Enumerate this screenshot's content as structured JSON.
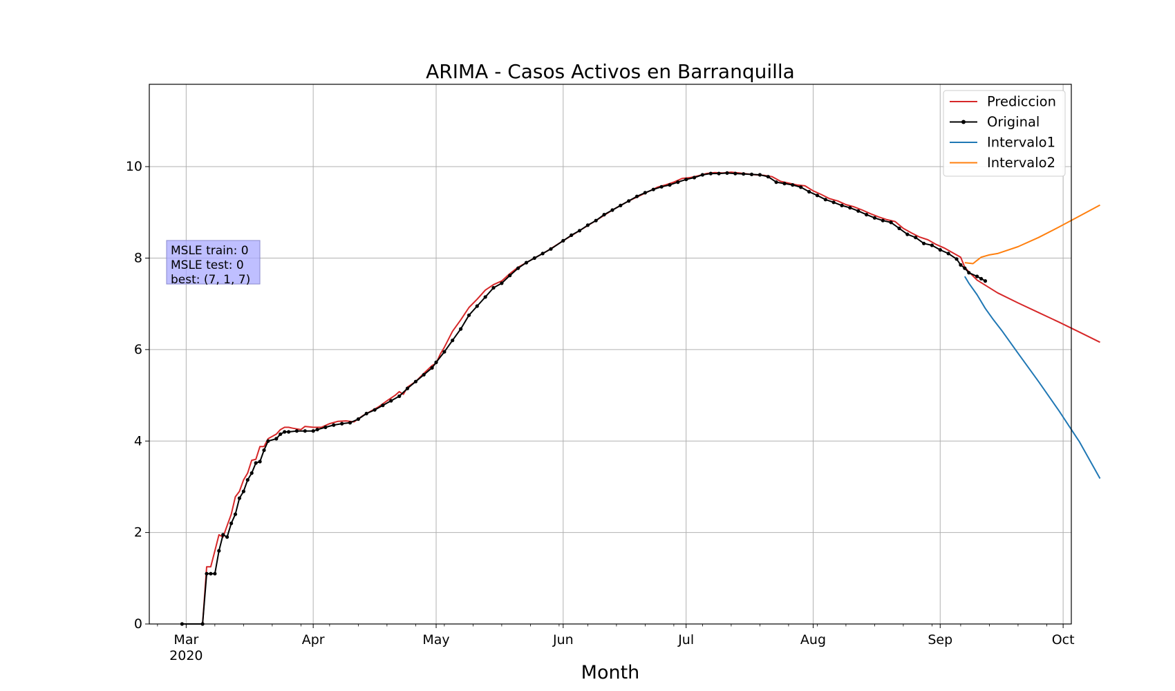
{
  "chart_data": {
    "type": "line",
    "title": "ARIMA - Casos Activos en Barranquilla",
    "xlabel": "Month",
    "ylabel": "",
    "xlim": [
      "2020-02-21",
      "2020-10-03"
    ],
    "ylim": [
      0,
      11.8
    ],
    "grid": true,
    "legend_position": "top-right",
    "y_ticks": [
      0,
      2,
      4,
      6,
      8,
      10
    ],
    "x_ticks": [
      {
        "date": "2020-03-01",
        "label": "Mar",
        "sublabel": "2020"
      },
      {
        "date": "2020-04-01",
        "label": "Apr",
        "sublabel": ""
      },
      {
        "date": "2020-05-01",
        "label": "May",
        "sublabel": ""
      },
      {
        "date": "2020-06-01",
        "label": "Jun",
        "sublabel": ""
      },
      {
        "date": "2020-07-01",
        "label": "Jul",
        "sublabel": ""
      },
      {
        "date": "2020-08-01",
        "label": "Aug",
        "sublabel": ""
      },
      {
        "date": "2020-09-01",
        "label": "Sep",
        "sublabel": ""
      },
      {
        "date": "2020-10-01",
        "label": "Oct",
        "sublabel": ""
      }
    ],
    "series": [
      {
        "name": "Prediccion",
        "color": "#d62728",
        "markers": false,
        "points": [
          [
            "2020-02-29",
            0
          ],
          [
            "2020-03-05",
            0
          ],
          [
            "2020-03-06",
            1.25
          ],
          [
            "2020-03-07",
            1.25
          ],
          [
            "2020-03-08",
            1.6
          ],
          [
            "2020-03-09",
            1.95
          ],
          [
            "2020-03-10",
            1.9
          ],
          [
            "2020-03-11",
            2.15
          ],
          [
            "2020-03-12",
            2.4
          ],
          [
            "2020-03-13",
            2.78
          ],
          [
            "2020-03-14",
            2.9
          ],
          [
            "2020-03-15",
            3.15
          ],
          [
            "2020-03-16",
            3.3
          ],
          [
            "2020-03-17",
            3.58
          ],
          [
            "2020-03-18",
            3.6
          ],
          [
            "2020-03-19",
            3.88
          ],
          [
            "2020-03-20",
            3.88
          ],
          [
            "2020-03-21",
            4.05
          ],
          [
            "2020-03-23",
            4.15
          ],
          [
            "2020-03-24",
            4.25
          ],
          [
            "2020-03-25",
            4.3
          ],
          [
            "2020-03-26",
            4.3
          ],
          [
            "2020-03-27",
            4.28
          ],
          [
            "2020-03-29",
            4.25
          ],
          [
            "2020-03-30",
            4.32
          ],
          [
            "2020-04-01",
            4.3
          ],
          [
            "2020-04-03",
            4.3
          ],
          [
            "2020-04-05",
            4.38
          ],
          [
            "2020-04-07",
            4.43
          ],
          [
            "2020-04-09",
            4.44
          ],
          [
            "2020-04-11",
            4.42
          ],
          [
            "2020-04-13",
            4.55
          ],
          [
            "2020-04-15",
            4.65
          ],
          [
            "2020-04-17",
            4.75
          ],
          [
            "2020-04-19",
            4.88
          ],
          [
            "2020-04-21",
            5.0
          ],
          [
            "2020-04-22",
            5.08
          ],
          [
            "2020-04-23",
            5.02
          ],
          [
            "2020-04-24",
            5.18
          ],
          [
            "2020-04-26",
            5.3
          ],
          [
            "2020-04-28",
            5.48
          ],
          [
            "2020-04-30",
            5.65
          ],
          [
            "2020-05-01",
            5.7
          ],
          [
            "2020-05-02",
            5.9
          ],
          [
            "2020-05-03",
            6.05
          ],
          [
            "2020-05-05",
            6.4
          ],
          [
            "2020-05-07",
            6.65
          ],
          [
            "2020-05-09",
            6.92
          ],
          [
            "2020-05-11",
            7.1
          ],
          [
            "2020-05-13",
            7.3
          ],
          [
            "2020-05-15",
            7.42
          ],
          [
            "2020-05-17",
            7.5
          ],
          [
            "2020-05-19",
            7.66
          ],
          [
            "2020-05-21",
            7.8
          ],
          [
            "2020-05-24",
            7.95
          ],
          [
            "2020-05-26",
            8.05
          ],
          [
            "2020-05-28",
            8.15
          ],
          [
            "2020-06-01",
            8.38
          ],
          [
            "2020-06-05",
            8.6
          ],
          [
            "2020-06-09",
            8.82
          ],
          [
            "2020-06-13",
            9.05
          ],
          [
            "2020-06-17",
            9.25
          ],
          [
            "2020-06-21",
            9.42
          ],
          [
            "2020-06-24",
            9.55
          ],
          [
            "2020-06-26",
            9.6
          ],
          [
            "2020-06-28",
            9.66
          ],
          [
            "2020-06-30",
            9.74
          ],
          [
            "2020-07-02",
            9.76
          ],
          [
            "2020-07-04",
            9.8
          ],
          [
            "2020-07-06",
            9.85
          ],
          [
            "2020-07-08",
            9.87
          ],
          [
            "2020-07-10",
            9.86
          ],
          [
            "2020-07-12",
            9.88
          ],
          [
            "2020-07-14",
            9.86
          ],
          [
            "2020-07-16",
            9.84
          ],
          [
            "2020-07-18",
            9.82
          ],
          [
            "2020-07-20",
            9.81
          ],
          [
            "2020-07-22",
            9.78
          ],
          [
            "2020-07-24",
            9.68
          ],
          [
            "2020-07-26",
            9.64
          ],
          [
            "2020-07-28",
            9.6
          ],
          [
            "2020-07-30",
            9.58
          ],
          [
            "2020-08-01",
            9.47
          ],
          [
            "2020-08-03",
            9.39
          ],
          [
            "2020-08-05",
            9.3
          ],
          [
            "2020-08-07",
            9.25
          ],
          [
            "2020-08-09",
            9.17
          ],
          [
            "2020-08-11",
            9.12
          ],
          [
            "2020-08-13",
            9.05
          ],
          [
            "2020-08-15",
            8.97
          ],
          [
            "2020-08-17",
            8.9
          ],
          [
            "2020-08-19",
            8.84
          ],
          [
            "2020-08-21",
            8.8
          ],
          [
            "2020-08-23",
            8.65
          ],
          [
            "2020-08-25",
            8.55
          ],
          [
            "2020-08-27",
            8.46
          ],
          [
            "2020-08-29",
            8.4
          ],
          [
            "2020-08-31",
            8.3
          ],
          [
            "2020-09-02",
            8.22
          ],
          [
            "2020-09-04",
            8.12
          ],
          [
            "2020-09-06",
            8.02
          ],
          [
            "2020-09-07",
            7.8
          ],
          [
            "2020-09-08",
            7.7
          ],
          [
            "2020-09-10",
            7.52
          ],
          [
            "2020-09-15",
            7.24
          ],
          [
            "2020-09-20",
            7.02
          ],
          [
            "2020-09-25",
            6.81
          ],
          [
            "2020-09-30",
            6.6
          ],
          [
            "2020-10-05",
            6.38
          ],
          [
            "2020-10-10",
            6.16
          ]
        ]
      },
      {
        "name": "Original",
        "color": "#000000",
        "markers": true,
        "points": [
          [
            "2020-02-29",
            0
          ],
          [
            "2020-03-05",
            0
          ],
          [
            "2020-03-06",
            1.1
          ],
          [
            "2020-03-07",
            1.1
          ],
          [
            "2020-03-08",
            1.1
          ],
          [
            "2020-03-09",
            1.6
          ],
          [
            "2020-03-10",
            1.95
          ],
          [
            "2020-03-11",
            1.9
          ],
          [
            "2020-03-12",
            2.2
          ],
          [
            "2020-03-13",
            2.4
          ],
          [
            "2020-03-14",
            2.75
          ],
          [
            "2020-03-15",
            2.9
          ],
          [
            "2020-03-16",
            3.15
          ],
          [
            "2020-03-17",
            3.3
          ],
          [
            "2020-03-18",
            3.52
          ],
          [
            "2020-03-19",
            3.55
          ],
          [
            "2020-03-20",
            3.8
          ],
          [
            "2020-03-21",
            4.0
          ],
          [
            "2020-03-23",
            4.05
          ],
          [
            "2020-03-24",
            4.15
          ],
          [
            "2020-03-25",
            4.2
          ],
          [
            "2020-03-26",
            4.2
          ],
          [
            "2020-03-28",
            4.22
          ],
          [
            "2020-03-30",
            4.22
          ],
          [
            "2020-04-01",
            4.22
          ],
          [
            "2020-04-02",
            4.25
          ],
          [
            "2020-04-04",
            4.3
          ],
          [
            "2020-04-06",
            4.35
          ],
          [
            "2020-04-08",
            4.38
          ],
          [
            "2020-04-10",
            4.4
          ],
          [
            "2020-04-12",
            4.48
          ],
          [
            "2020-04-14",
            4.6
          ],
          [
            "2020-04-16",
            4.68
          ],
          [
            "2020-04-18",
            4.78
          ],
          [
            "2020-04-20",
            4.88
          ],
          [
            "2020-04-22",
            4.98
          ],
          [
            "2020-04-24",
            5.15
          ],
          [
            "2020-04-26",
            5.3
          ],
          [
            "2020-04-28",
            5.45
          ],
          [
            "2020-04-30",
            5.6
          ],
          [
            "2020-05-01",
            5.72
          ],
          [
            "2020-05-03",
            5.95
          ],
          [
            "2020-05-05",
            6.2
          ],
          [
            "2020-05-07",
            6.45
          ],
          [
            "2020-05-09",
            6.75
          ],
          [
            "2020-05-11",
            6.95
          ],
          [
            "2020-05-13",
            7.15
          ],
          [
            "2020-05-15",
            7.35
          ],
          [
            "2020-05-17",
            7.45
          ],
          [
            "2020-05-19",
            7.62
          ],
          [
            "2020-05-21",
            7.78
          ],
          [
            "2020-05-23",
            7.9
          ],
          [
            "2020-05-25",
            8.0
          ],
          [
            "2020-05-27",
            8.1
          ],
          [
            "2020-05-29",
            8.2
          ],
          [
            "2020-06-01",
            8.38
          ],
          [
            "2020-06-03",
            8.5
          ],
          [
            "2020-06-05",
            8.6
          ],
          [
            "2020-06-07",
            8.72
          ],
          [
            "2020-06-09",
            8.82
          ],
          [
            "2020-06-11",
            8.95
          ],
          [
            "2020-06-13",
            9.05
          ],
          [
            "2020-06-15",
            9.15
          ],
          [
            "2020-06-17",
            9.25
          ],
          [
            "2020-06-19",
            9.35
          ],
          [
            "2020-06-21",
            9.43
          ],
          [
            "2020-06-23",
            9.5
          ],
          [
            "2020-06-25",
            9.56
          ],
          [
            "2020-06-27",
            9.6
          ],
          [
            "2020-06-29",
            9.66
          ],
          [
            "2020-07-01",
            9.72
          ],
          [
            "2020-07-03",
            9.76
          ],
          [
            "2020-07-05",
            9.82
          ],
          [
            "2020-07-07",
            9.85
          ],
          [
            "2020-07-09",
            9.85
          ],
          [
            "2020-07-11",
            9.86
          ],
          [
            "2020-07-13",
            9.85
          ],
          [
            "2020-07-15",
            9.84
          ],
          [
            "2020-07-17",
            9.83
          ],
          [
            "2020-07-19",
            9.82
          ],
          [
            "2020-07-21",
            9.78
          ],
          [
            "2020-07-23",
            9.66
          ],
          [
            "2020-07-25",
            9.63
          ],
          [
            "2020-07-27",
            9.6
          ],
          [
            "2020-07-29",
            9.55
          ],
          [
            "2020-07-31",
            9.45
          ],
          [
            "2020-08-02",
            9.37
          ],
          [
            "2020-08-04",
            9.28
          ],
          [
            "2020-08-06",
            9.22
          ],
          [
            "2020-08-08",
            9.15
          ],
          [
            "2020-08-10",
            9.1
          ],
          [
            "2020-08-12",
            9.03
          ],
          [
            "2020-08-14",
            8.95
          ],
          [
            "2020-08-16",
            8.88
          ],
          [
            "2020-08-18",
            8.82
          ],
          [
            "2020-08-20",
            8.78
          ],
          [
            "2020-08-22",
            8.65
          ],
          [
            "2020-08-24",
            8.52
          ],
          [
            "2020-08-26",
            8.45
          ],
          [
            "2020-08-28",
            8.32
          ],
          [
            "2020-08-30",
            8.28
          ],
          [
            "2020-09-01",
            8.18
          ],
          [
            "2020-09-03",
            8.1
          ],
          [
            "2020-09-05",
            7.98
          ],
          [
            "2020-09-06",
            7.85
          ],
          [
            "2020-09-07",
            7.78
          ],
          [
            "2020-09-08",
            7.68
          ],
          [
            "2020-09-10",
            7.6
          ],
          [
            "2020-09-11",
            7.55
          ],
          [
            "2020-09-12",
            7.5
          ]
        ]
      },
      {
        "name": "Intervalo1",
        "color": "#1f77b4",
        "markers": false,
        "points": [
          [
            "2020-09-07",
            7.6
          ],
          [
            "2020-09-08",
            7.45
          ],
          [
            "2020-09-10",
            7.2
          ],
          [
            "2020-09-12",
            6.9
          ],
          [
            "2020-09-14",
            6.65
          ],
          [
            "2020-09-16",
            6.42
          ],
          [
            "2020-09-20",
            5.92
          ],
          [
            "2020-09-25",
            5.3
          ],
          [
            "2020-09-30",
            4.66
          ],
          [
            "2020-10-05",
            3.98
          ],
          [
            "2020-10-10",
            3.18
          ]
        ]
      },
      {
        "name": "Intervalo2",
        "color": "#ff7f0e",
        "markers": false,
        "points": [
          [
            "2020-09-07",
            7.9
          ],
          [
            "2020-09-09",
            7.88
          ],
          [
            "2020-09-10",
            7.95
          ],
          [
            "2020-09-11",
            8.02
          ],
          [
            "2020-09-13",
            8.07
          ],
          [
            "2020-09-15",
            8.1
          ],
          [
            "2020-09-20",
            8.25
          ],
          [
            "2020-09-25",
            8.45
          ],
          [
            "2020-09-30",
            8.68
          ],
          [
            "2020-10-05",
            8.92
          ],
          [
            "2020-10-10",
            9.16
          ]
        ]
      }
    ],
    "annotation": {
      "lines": [
        "MSLE train: 0",
        "MSLE test: 0",
        "best: (7, 1, 7)"
      ],
      "background": "#aaaaff"
    }
  }
}
